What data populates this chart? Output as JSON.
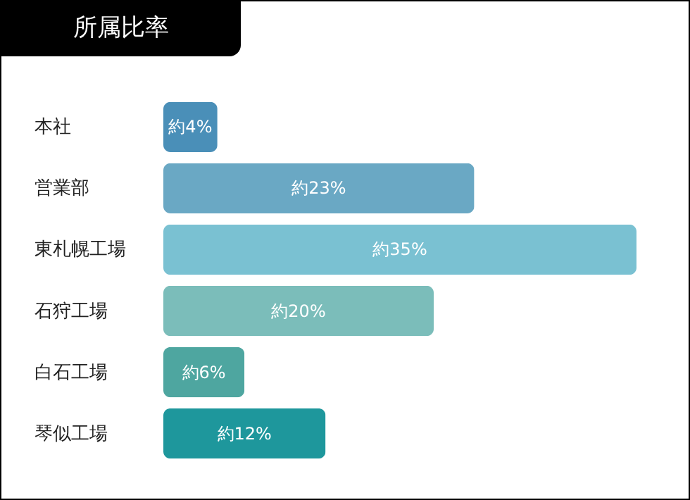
{
  "chart_data": {
    "type": "bar",
    "orientation": "horizontal",
    "title": "所属比率",
    "categories": [
      "本社",
      "営業部",
      "東札幌工場",
      "石狩工場",
      "白石工場",
      "琴似工場"
    ],
    "values": [
      4,
      23,
      35,
      20,
      6,
      12
    ],
    "colors": [
      "#4a8fb8",
      "#6aa8c4",
      "#7ac1d2",
      "#7bbdba",
      "#4ea6a0",
      "#1e979c"
    ],
    "value_labels": [
      "約4%",
      "約23%",
      "約35%",
      "約20%",
      "約6%",
      "約12%"
    ]
  }
}
